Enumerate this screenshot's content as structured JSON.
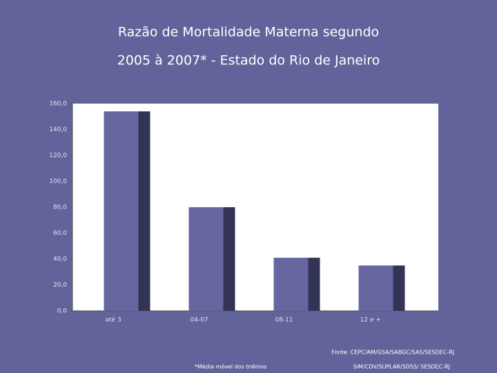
{
  "chart_data": {
    "type": "bar",
    "title": "Razão de Mortalidade Materna segundo",
    "subtitle": "2005 à 2007* - Estado do Rio de Janeiro",
    "categories": [
      "até 3",
      "04-07",
      "08-11",
      "12 e +"
    ],
    "values": [
      154,
      80,
      41,
      35
    ],
    "color": "#6666a0",
    "side_color": "#333355",
    "ylim": [
      0,
      160
    ],
    "yticks": [
      {
        "value": 0,
        "label": "0,0"
      },
      {
        "value": 20,
        "label": "20,0"
      },
      {
        "value": 40,
        "label": "40,0"
      },
      {
        "value": 60,
        "label": "60,0"
      },
      {
        "value": 80,
        "label": "80,0"
      },
      {
        "value": 100,
        "label": "100,0"
      },
      {
        "value": 120,
        "label": "120,0"
      },
      {
        "value": 140,
        "label": "140,0"
      },
      {
        "value": 160,
        "label": "160,0"
      }
    ],
    "notes": [
      "Fonte: CEPC/AM/GSA/SABGC/SAS/SESDEC-RJ",
      "*Média móvel dos triênios",
      "SIM/CDV/SUPLAR/SDSS/ SESDEC-RJ"
    ]
  }
}
